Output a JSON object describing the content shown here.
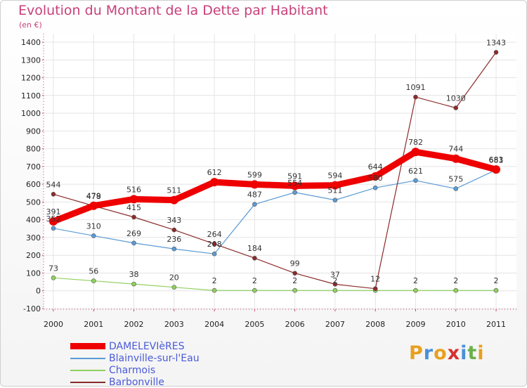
{
  "header": {
    "title": "Evolution du Montant de la Dette par Habitant",
    "unit": "(en €)"
  },
  "logo": {
    "letters": [
      "P",
      "r",
      "o",
      "x",
      "i",
      "t",
      "i"
    ],
    "colors": [
      "#e8a020",
      "#4a90d9",
      "#e8a020",
      "#d93030",
      "#4a90d9",
      "#6ab04c",
      "#e8a020"
    ]
  },
  "chart_data": {
    "type": "line",
    "x": [
      "2000",
      "2001",
      "2002",
      "2003",
      "2004",
      "2005",
      "2006",
      "2007",
      "2008",
      "2009",
      "2010",
      "2011"
    ],
    "ylim": [
      -100,
      1400
    ],
    "yticks": [
      "-100",
      "0",
      "100",
      "200",
      "300",
      "400",
      "500",
      "600",
      "700",
      "800",
      "900",
      "1000",
      "1100",
      "1200",
      "1300",
      "1400"
    ],
    "grid": true,
    "legend_position": "bottom-left",
    "series": [
      {
        "name": "DAMELEVIèRES",
        "color": "#ee0000",
        "values": [
          391,
          479,
          516,
          511,
          612,
          599,
          591,
          594,
          644,
          782,
          744,
          683
        ],
        "labels": [
          "391",
          "479",
          "516",
          "511",
          "612",
          "599",
          "591",
          "594",
          "644",
          "782",
          "744",
          "683"
        ]
      },
      {
        "name": "Blainville-sur-l'Eau",
        "color": "#5b9bd5",
        "values": [
          352,
          310,
          269,
          236,
          208,
          487,
          554,
          511,
          580,
          621,
          575,
          681
        ],
        "labels": [
          "352",
          "310",
          "269",
          "236",
          "208",
          "487",
          "554",
          "511",
          "580",
          "621",
          "575",
          "681"
        ]
      },
      {
        "name": "Charmois",
        "color": "#90d060",
        "values": [
          73,
          56,
          38,
          20,
          2,
          2,
          2,
          2,
          2,
          2,
          2,
          2
        ],
        "labels": [
          "73",
          "56",
          "38",
          "20",
          "2",
          "2",
          "2",
          "2",
          "",
          "2",
          "2",
          "2"
        ]
      },
      {
        "name": "Barbonville",
        "color": "#8b2a2a",
        "values": [
          544,
          478,
          415,
          343,
          264,
          184,
          99,
          37,
          12,
          1091,
          1030,
          1343
        ],
        "labels": [
          "544",
          "478",
          "415",
          "343",
          "264",
          "184",
          "99",
          "37",
          "12",
          "1091",
          "1030",
          "1343"
        ]
      }
    ]
  }
}
